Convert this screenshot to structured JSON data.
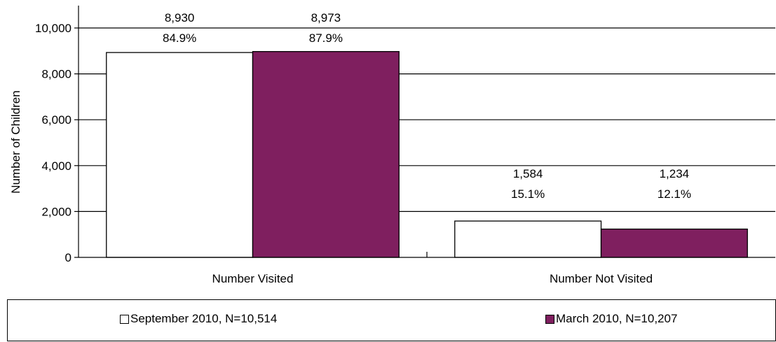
{
  "chart_data": {
    "type": "bar",
    "categories": [
      "Number Visited",
      "Number Not Visited"
    ],
    "series": [
      {
        "name": "September 2010, N=10,514",
        "color": "#ffffff",
        "values": [
          8930,
          1584
        ],
        "labels": [
          "8,930",
          "1,584"
        ],
        "percents": [
          "84.9%",
          "15.1%"
        ]
      },
      {
        "name": "March 2010, N=10,207",
        "color": "#7f1f5f",
        "values": [
          8973,
          1234
        ],
        "labels": [
          "8,973",
          "1,234"
        ],
        "percents": [
          "87.9%",
          "12.1%"
        ]
      }
    ],
    "ylabel": "Number of Children",
    "ylim": [
      0,
      10000
    ],
    "yticks": [
      0,
      2000,
      4000,
      6000,
      8000,
      10000
    ],
    "ytick_labels": [
      "0",
      "2,000",
      "4,000",
      "6,000",
      "8,000",
      "10,000"
    ],
    "grid": true,
    "legend_position": "bottom"
  }
}
